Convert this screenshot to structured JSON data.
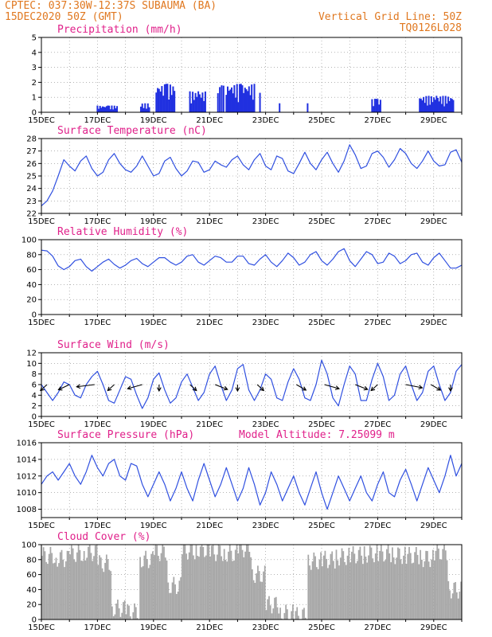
{
  "header": {
    "line1": "CPTEC:   037:30W-12:37S  SUBAUMA (BA)",
    "line2": "15DEC2020 50Z (GMT)",
    "grid_note": "Vertical Grid Line: 50Z",
    "code": "TQ0126L028",
    "altitude": "Model Altitude: 7.25099 m"
  },
  "colors": {
    "header": "#e07820",
    "title": "#e0208a",
    "line": "#3050e0",
    "bar": "#2030e0",
    "cloud": "#a8a8a8"
  },
  "chart_data": [
    {
      "type": "bar",
      "title": "Precipitation (mm/h)",
      "ylim": [
        0,
        5
      ],
      "yticks": [
        "0",
        "1",
        "2",
        "3",
        "4",
        "5"
      ],
      "xticks": [
        "15DEC",
        "17DEC",
        "19DEC",
        "21DEC",
        "23DEC",
        "25DEC",
        "27DEC",
        "29DEC"
      ],
      "xrange_days": [
        15,
        30
      ],
      "events": [
        {
          "day": 17.0,
          "end": 17.7,
          "peak": 0.45
        },
        {
          "day": 18.55,
          "end": 18.85,
          "peak": 0.6
        },
        {
          "day": 19.1,
          "end": 19.75,
          "peak": 1.9
        },
        {
          "day": 20.3,
          "end": 20.85,
          "peak": 1.4
        },
        {
          "day": 21.3,
          "end": 21.5,
          "peak": 1.8
        },
        {
          "day": 21.6,
          "end": 22.6,
          "peak": 1.9
        },
        {
          "day": 22.8,
          "end": 22.85,
          "peak": 1.3
        },
        {
          "day": 23.5,
          "end": 23.55,
          "peak": 0.6
        },
        {
          "day": 24.5,
          "end": 24.55,
          "peak": 0.6
        },
        {
          "day": 26.8,
          "end": 27.1,
          "peak": 0.9
        },
        {
          "day": 28.5,
          "end": 29.7,
          "peak": 1.1
        }
      ]
    },
    {
      "type": "line",
      "title": "Surface Temperature (nC)",
      "ylim": [
        22,
        28
      ],
      "yticks": [
        "22",
        "23",
        "24",
        "25",
        "26",
        "27",
        "28"
      ],
      "xticks": [
        "15DEC",
        "17DEC",
        "19DEC",
        "21DEC",
        "23DEC",
        "25DEC",
        "27DEC",
        "29DEC"
      ],
      "xrange_days": [
        15,
        30
      ],
      "x": [
        15,
        15.2,
        15.4,
        15.6,
        15.8,
        16,
        16.2,
        16.4,
        16.6,
        16.8,
        17,
        17.2,
        17.4,
        17.6,
        17.8,
        18,
        18.2,
        18.4,
        18.6,
        18.8,
        19,
        19.2,
        19.4,
        19.6,
        19.8,
        20,
        20.2,
        20.4,
        20.6,
        20.8,
        21,
        21.2,
        21.4,
        21.6,
        21.8,
        22,
        22.2,
        22.4,
        22.6,
        22.8,
        23,
        23.2,
        23.4,
        23.6,
        23.8,
        24,
        24.2,
        24.4,
        24.6,
        24.8,
        25,
        25.2,
        25.4,
        25.6,
        25.8,
        26,
        26.2,
        26.4,
        26.6,
        26.8,
        27,
        27.2,
        27.4,
        27.6,
        27.8,
        28,
        28.2,
        28.4,
        28.6,
        28.8,
        29,
        29.2,
        29.4,
        29.6,
        29.8,
        30
      ],
      "series": [
        {
          "values": [
            22.6,
            23.0,
            23.8,
            25.0,
            26.3,
            25.8,
            25.4,
            26.2,
            26.6,
            25.6,
            25.0,
            25.3,
            26.3,
            26.8,
            26.0,
            25.5,
            25.3,
            25.8,
            26.6,
            25.8,
            25.0,
            25.2,
            26.2,
            26.5,
            25.6,
            25.0,
            25.4,
            26.2,
            26.1,
            25.3,
            25.5,
            26.2,
            25.9,
            25.7,
            26.3,
            26.6,
            25.9,
            25.5,
            26.3,
            26.8,
            25.8,
            25.5,
            26.6,
            26.4,
            25.4,
            25.2,
            26.0,
            26.9,
            26.0,
            25.5,
            26.3,
            26.9,
            26.0,
            25.3,
            26.2,
            27.5,
            26.7,
            25.6,
            25.8,
            26.8,
            27.0,
            26.5,
            25.7,
            26.3,
            27.2,
            26.8,
            26.0,
            25.6,
            26.2,
            27.0,
            26.2,
            25.8,
            25.9,
            26.9,
            27.1,
            26.1
          ]
        }
      ]
    },
    {
      "type": "line",
      "title": "Relative Humidity (%)",
      "ylim": [
        0,
        100
      ],
      "yticks": [
        "0",
        "20",
        "40",
        "60",
        "80",
        "100"
      ],
      "xticks": [
        "15DEC",
        "17DEC",
        "19DEC",
        "21DEC",
        "23DEC",
        "25DEC",
        "27DEC",
        "29DEC"
      ],
      "xrange_days": [
        15,
        30
      ],
      "x": [
        15,
        15.2,
        15.4,
        15.6,
        15.8,
        16,
        16.2,
        16.4,
        16.6,
        16.8,
        17,
        17.2,
        17.4,
        17.6,
        17.8,
        18,
        18.2,
        18.4,
        18.6,
        18.8,
        19,
        19.2,
        19.4,
        19.6,
        19.8,
        20,
        20.2,
        20.4,
        20.6,
        20.8,
        21,
        21.2,
        21.4,
        21.6,
        21.8,
        22,
        22.2,
        22.4,
        22.6,
        22.8,
        23,
        23.2,
        23.4,
        23.6,
        23.8,
        24,
        24.2,
        24.4,
        24.6,
        24.8,
        25,
        25.2,
        25.4,
        25.6,
        25.8,
        26,
        26.2,
        26.4,
        26.6,
        26.8,
        27,
        27.2,
        27.4,
        27.6,
        27.8,
        28,
        28.2,
        28.4,
        28.6,
        28.8,
        29,
        29.2,
        29.4,
        29.6,
        29.8,
        30
      ],
      "series": [
        {
          "values": [
            86,
            85,
            78,
            65,
            60,
            64,
            72,
            74,
            64,
            58,
            64,
            70,
            74,
            67,
            62,
            66,
            72,
            75,
            68,
            64,
            70,
            76,
            76,
            70,
            66,
            70,
            78,
            80,
            70,
            66,
            72,
            78,
            76,
            70,
            70,
            78,
            78,
            68,
            66,
            74,
            80,
            70,
            64,
            72,
            82,
            76,
            66,
            70,
            80,
            84,
            72,
            66,
            74,
            84,
            88,
            72,
            64,
            74,
            84,
            80,
            68,
            70,
            82,
            78,
            68,
            72,
            80,
            82,
            70,
            66,
            76,
            82,
            72,
            62,
            62,
            66
          ]
        }
      ]
    },
    {
      "type": "line",
      "title": "Surface Wind (m/s)",
      "ylim": [
        0,
        12
      ],
      "yticks": [
        "0",
        "2",
        "4",
        "6",
        "8",
        "10",
        "12"
      ],
      "xticks": [
        "15DEC",
        "17DEC",
        "19DEC",
        "21DEC",
        "23DEC",
        "25DEC",
        "27DEC",
        "29DEC"
      ],
      "xrange_days": [
        15,
        30
      ],
      "x": [
        15,
        15.2,
        15.4,
        15.6,
        15.8,
        16,
        16.2,
        16.4,
        16.6,
        16.8,
        17,
        17.2,
        17.4,
        17.6,
        17.8,
        18,
        18.2,
        18.4,
        18.6,
        18.8,
        19,
        19.2,
        19.4,
        19.6,
        19.8,
        20,
        20.2,
        20.4,
        20.6,
        20.8,
        21,
        21.2,
        21.4,
        21.6,
        21.8,
        22,
        22.2,
        22.4,
        22.6,
        22.8,
        23,
        23.2,
        23.4,
        23.6,
        23.8,
        24,
        24.2,
        24.4,
        24.6,
        24.8,
        25,
        25.2,
        25.4,
        25.6,
        25.8,
        26,
        26.2,
        26.4,
        26.6,
        26.8,
        27,
        27.2,
        27.4,
        27.6,
        27.8,
        28,
        28.2,
        28.4,
        28.6,
        28.8,
        29,
        29.2,
        29.4,
        29.6,
        29.8,
        30
      ],
      "series": [
        {
          "values": [
            6.0,
            4.5,
            3.0,
            4.5,
            6.5,
            6.0,
            4.0,
            3.5,
            6.0,
            7.5,
            8.5,
            6.0,
            3.0,
            2.5,
            5.0,
            7.5,
            7.0,
            4.0,
            1.5,
            3.5,
            7.0,
            8.2,
            5.0,
            2.5,
            3.5,
            6.5,
            8.0,
            5.5,
            3.0,
            4.5,
            8.0,
            9.5,
            6.0,
            3.0,
            5.0,
            9.0,
            9.8,
            5.0,
            3.0,
            5.0,
            8.0,
            7.0,
            3.5,
            3.0,
            6.5,
            9.0,
            7.0,
            3.5,
            3.0,
            6.0,
            10.6,
            8.0,
            3.5,
            2.0,
            6.0,
            9.5,
            8.0,
            3.0,
            3.0,
            7.0,
            10.0,
            7.5,
            3.0,
            4.0,
            8.0,
            9.5,
            6.0,
            3.0,
            4.5,
            8.5,
            9.5,
            6.0,
            3.0,
            4.5,
            8.5,
            9.8
          ]
        }
      ],
      "wind_barbs": [
        {
          "day": 15.2,
          "dir": 200
        },
        {
          "day": 16.0,
          "dir": 215
        },
        {
          "day": 16.9,
          "dir": 250
        },
        {
          "day": 17.6,
          "dir": 200
        },
        {
          "day": 18.6,
          "dir": 230
        },
        {
          "day": 19.2,
          "dir": 180
        },
        {
          "day": 20.3,
          "dir": 160
        },
        {
          "day": 21.2,
          "dir": 140
        },
        {
          "day": 22.0,
          "dir": 180
        },
        {
          "day": 22.7,
          "dir": 160
        },
        {
          "day": 24.1,
          "dir": 150
        },
        {
          "day": 25.1,
          "dir": 130
        },
        {
          "day": 26.2,
          "dir": 140
        },
        {
          "day": 27.0,
          "dir": 200
        },
        {
          "day": 28.0,
          "dir": 120
        },
        {
          "day": 28.9,
          "dir": 150
        },
        {
          "day": 29.6,
          "dir": 180
        }
      ]
    },
    {
      "type": "line",
      "title": "Surface Pressure (hPa)",
      "ylim": [
        1007,
        1016
      ],
      "yticks": [
        "1008",
        "1010",
        "1012",
        "1014",
        "1016"
      ],
      "xticks": [
        "15DEC",
        "17DEC",
        "19DEC",
        "21DEC",
        "23DEC",
        "25DEC",
        "27DEC",
        "29DEC"
      ],
      "xrange_days": [
        15,
        30
      ],
      "x": [
        15,
        15.2,
        15.4,
        15.6,
        15.8,
        16,
        16.2,
        16.4,
        16.6,
        16.8,
        17,
        17.2,
        17.4,
        17.6,
        17.8,
        18,
        18.2,
        18.4,
        18.6,
        18.8,
        19,
        19.2,
        19.4,
        19.6,
        19.8,
        20,
        20.2,
        20.4,
        20.6,
        20.8,
        21,
        21.2,
        21.4,
        21.6,
        21.8,
        22,
        22.2,
        22.4,
        22.6,
        22.8,
        23,
        23.2,
        23.4,
        23.6,
        23.8,
        24,
        24.2,
        24.4,
        24.6,
        24.8,
        25,
        25.2,
        25.4,
        25.6,
        25.8,
        26,
        26.2,
        26.4,
        26.6,
        26.8,
        27,
        27.2,
        27.4,
        27.6,
        27.8,
        28,
        28.2,
        28.4,
        28.6,
        28.8,
        29,
        29.2,
        29.4,
        29.6,
        29.8,
        30
      ],
      "series": [
        {
          "values": [
            1011.0,
            1012.0,
            1012.5,
            1011.5,
            1012.5,
            1013.5,
            1012.0,
            1011.0,
            1012.5,
            1014.5,
            1013.0,
            1012.0,
            1013.5,
            1014.0,
            1012.0,
            1011.5,
            1013.5,
            1013.2,
            1011.0,
            1009.5,
            1011.0,
            1012.5,
            1011.0,
            1009.0,
            1010.5,
            1012.5,
            1010.5,
            1009.0,
            1011.5,
            1013.5,
            1011.5,
            1009.5,
            1011.0,
            1013.0,
            1011.0,
            1009.0,
            1010.5,
            1013.0,
            1011.0,
            1008.5,
            1010.0,
            1012.5,
            1011.0,
            1009.0,
            1010.5,
            1012.0,
            1010.0,
            1008.5,
            1010.5,
            1012.5,
            1010.0,
            1008.0,
            1010.0,
            1012.0,
            1010.5,
            1009.0,
            1010.5,
            1012.0,
            1010.0,
            1009.0,
            1011.0,
            1012.5,
            1010.0,
            1009.5,
            1011.5,
            1012.8,
            1011.0,
            1009.0,
            1011.0,
            1013.0,
            1011.5,
            1010.0,
            1012.0,
            1014.5,
            1012.0,
            1013.5
          ]
        }
      ]
    },
    {
      "type": "bar",
      "title": "Cloud Cover (%)",
      "ylim": [
        0,
        100
      ],
      "yticks": [
        "0",
        "20",
        "40",
        "60",
        "80",
        "100"
      ],
      "xticks": [
        "15DEC",
        "17DEC",
        "19DEC",
        "21DEC",
        "23DEC",
        "25DEC",
        "27DEC",
        "29DEC"
      ],
      "xrange_days": [
        15,
        30
      ],
      "x": [
        15.25,
        15.75,
        16.25,
        16.75,
        17.25,
        17.75,
        18.25,
        18.75,
        19.25,
        19.75,
        20.25,
        20.75,
        21.25,
        21.75,
        22.25,
        22.75,
        23.25,
        23.75,
        24.25,
        24.75,
        25.25,
        25.75,
        26.25,
        26.75,
        27.25,
        27.75,
        28.25,
        28.75,
        29.25,
        29.75
      ],
      "values": [
        85,
        82,
        88,
        90,
        75,
        15,
        10,
        80,
        90,
        45,
        92,
        94,
        90,
        88,
        95,
        60,
        20,
        8,
        5,
        78,
        80,
        84,
        86,
        88,
        88,
        86,
        85,
        82,
        90,
        40
      ]
    }
  ]
}
